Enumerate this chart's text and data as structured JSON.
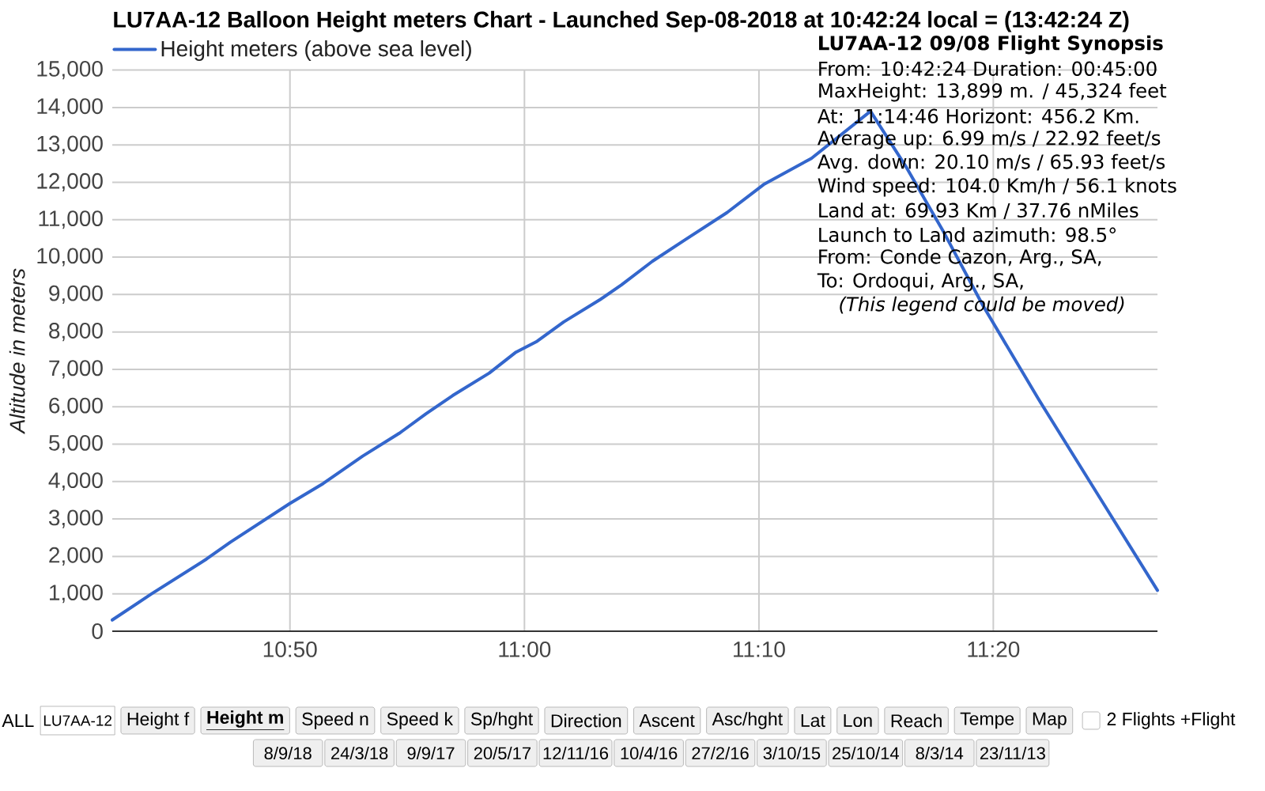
{
  "chart_data": {
    "type": "line",
    "title": "LU7AA-12 Balloon Height meters Chart - Launched Sep-08-2018 at 10:42:24 local = (13:42:24 Z)",
    "ylabel": "Altitude in meters",
    "x": [
      10.707,
      10.735,
      10.774,
      10.791,
      10.833,
      10.857,
      10.885,
      10.911,
      10.93,
      10.949,
      10.975,
      10.994,
      11.009,
      11.028,
      11.054,
      11.069,
      11.091,
      11.114,
      11.144,
      11.17,
      11.204,
      11.246,
      11.271,
      11.298,
      11.326,
      11.365,
      11.407,
      11.45
    ],
    "series": [
      {
        "name": "Height meters (above sea level)",
        "color": "#3366cc",
        "values": [
          300,
          1000,
          1930,
          2380,
          3410,
          3950,
          4680,
          5290,
          5810,
          6300,
          6900,
          7460,
          7750,
          8270,
          8870,
          9260,
          9890,
          10460,
          11190,
          11940,
          12640,
          13899,
          12430,
          10670,
          8700,
          6230,
          3690,
          1090
        ]
      }
    ],
    "xlim": [
      10.707,
      11.45
    ],
    "xticks": [
      {
        "value": 10.8333,
        "label": "10:50"
      },
      {
        "value": 11,
        "label": "11:00"
      },
      {
        "value": 11.1667,
        "label": "11:10"
      },
      {
        "value": 11.3333,
        "label": "11:20"
      }
    ],
    "ylim": [
      0,
      15000
    ],
    "yticks": [
      0,
      {
        "value": 1000,
        "label": "1,000"
      },
      {
        "value": 2000,
        "label": "2,000"
      },
      {
        "value": 3000,
        "label": "3,000"
      },
      {
        "value": 4000,
        "label": "4,000"
      },
      {
        "value": 5000,
        "label": "5,000"
      },
      {
        "value": 6000,
        "label": "6,000"
      },
      {
        "value": 7000,
        "label": "7,000"
      },
      {
        "value": 8000,
        "label": "8,000"
      },
      {
        "value": 9000,
        "label": "9,000"
      },
      {
        "value": 10000,
        "label": "10,000"
      },
      {
        "value": 11000,
        "label": "11,000"
      },
      {
        "value": 12000,
        "label": "12,000"
      },
      {
        "value": 13000,
        "label": "13,000"
      },
      {
        "value": 14000,
        "label": "14,000"
      },
      {
        "value": 15000,
        "label": "15,000"
      }
    ],
    "grid": true,
    "legend": "top left",
    "annotations": [
      "LU7AA-12 09/08 Flight Synopsis",
      "From: 10:42:24 Duration: 00:45:00",
      "MaxHeight: 13,899 m. / 45,324 feet",
      "At: 11:14:46 Horizont: 456.2 Km.",
      "Average up: 6.99 m/s / 22.92 feet/s",
      "Avg. down: 20.10 m/s / 65.93 feet/s",
      "Wind speed: 104.0 Km/h / 56.1 knots",
      "Land at: 69.93 Km / 37.76 nMiles",
      "Launch to Land azimuth: 98.5°",
      "From: Conde Cazon, Arg., SA,",
      "To: Ordoqui, Arg., SA,",
      "(This legend could be moved)",
      "ALL",
      "LU7AA-12",
      "Height f",
      "Height m",
      "Speed n",
      "Speed k",
      "Sp/hght",
      "Direction",
      "Ascent",
      "Asc/hght",
      "Lat",
      "Lon",
      "Reach",
      "Tempe",
      "Map",
      "2 Flights +Flight",
      "8/9/18",
      "24/3/18",
      "9/9/17",
      "20/5/17",
      "12/11/16",
      "10/4/16",
      "27/2/16",
      "3/10/15",
      "25/10/14",
      "8/3/14",
      "23/11/13"
    ]
  }
}
